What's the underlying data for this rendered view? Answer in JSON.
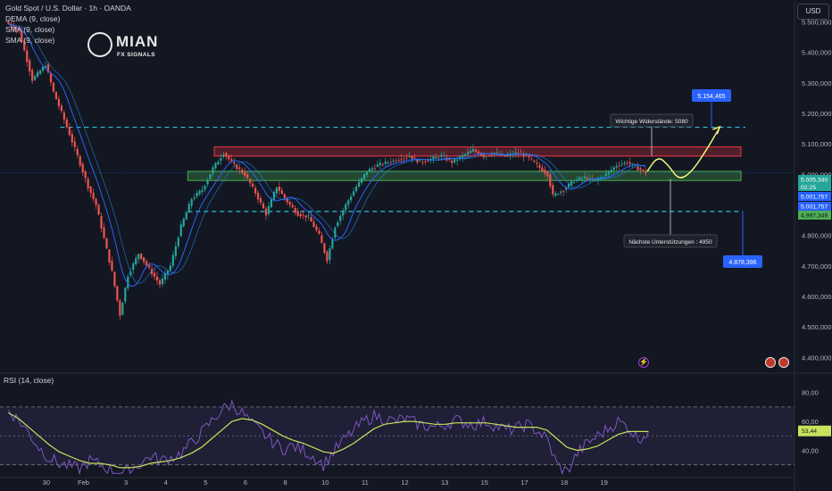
{
  "header": {
    "symbol_line": "Gold Spot / U.S. Dollar · 1h · OANDA",
    "indicator_1": "DEMA (9, close)",
    "indicator_2": "SMA (9, close)",
    "indicator_3": "SMA (9, close)"
  },
  "currency_button": "USD",
  "logo": {
    "name": "MIAN",
    "sub": "FX SIGNALS"
  },
  "rsi_title": "RSI (14, close)",
  "colors": {
    "background": "#131722",
    "up": "#26a69a",
    "down": "#ef5350",
    "resistance_zone": "#f23645",
    "support_zone": "#4caf50",
    "level_line": "#2ebdde",
    "projection": "#f5f57a",
    "rsi_line": "#7e57c2",
    "rsi_ma": "#c8e25c",
    "label_blue": "#2962ff"
  },
  "chart_data": [
    {
      "type": "candlestick",
      "title": "Gold Spot / U.S. Dollar · 1h · OANDA",
      "x_ticks": [
        "30",
        "Feb",
        "3",
        "4",
        "5",
        "6",
        "8",
        "10",
        "11",
        "12",
        "13",
        "15",
        "17",
        "18",
        "19"
      ],
      "y_ticks": [
        "5.500,000",
        "5.400,000",
        "5.300,000",
        "5.200,000",
        "5.100,000",
        "5.000,000",
        "4.900,000",
        "4.800,000",
        "4.700,000",
        "4.600,000",
        "4.500,000",
        "4.400,000"
      ],
      "ylim": [
        4360000,
        5560000
      ],
      "price_path": [
        [
          0,
          5500000
        ],
        [
          5,
          5470000
        ],
        [
          10,
          5310000
        ],
        [
          15,
          5360000
        ],
        [
          18,
          5270000
        ],
        [
          22,
          5180000
        ],
        [
          27,
          5060000
        ],
        [
          31,
          4960000
        ],
        [
          34,
          4900000
        ],
        [
          37,
          4790000
        ],
        [
          40,
          4680000
        ],
        [
          43,
          4540000
        ],
        [
          46,
          4670000
        ],
        [
          50,
          4740000
        ],
        [
          54,
          4690000
        ],
        [
          58,
          4640000
        ],
        [
          62,
          4700000
        ],
        [
          66,
          4830000
        ],
        [
          70,
          4920000
        ],
        [
          74,
          4950000
        ],
        [
          78,
          5020000
        ],
        [
          82,
          5070000
        ],
        [
          86,
          5030000
        ],
        [
          90,
          5000000
        ],
        [
          94,
          4940000
        ],
        [
          98,
          4870000
        ],
        [
          102,
          4960000
        ],
        [
          106,
          4910000
        ],
        [
          110,
          4870000
        ],
        [
          114,
          4860000
        ],
        [
          118,
          4800000
        ],
        [
          121,
          4720000
        ],
        [
          124,
          4830000
        ],
        [
          128,
          4900000
        ],
        [
          132,
          4960000
        ],
        [
          136,
          5010000
        ],
        [
          140,
          5030000
        ],
        [
          144,
          5040000
        ],
        [
          148,
          5050000
        ],
        [
          152,
          5060000
        ],
        [
          156,
          5040000
        ],
        [
          160,
          5050000
        ],
        [
          164,
          5060000
        ],
        [
          168,
          5040000
        ],
        [
          172,
          5060000
        ],
        [
          176,
          5080000
        ],
        [
          180,
          5060000
        ],
        [
          184,
          5070000
        ],
        [
          188,
          5060000
        ],
        [
          192,
          5070000
        ],
        [
          196,
          5060000
        ],
        [
          200,
          5030000
        ],
        [
          204,
          5000000
        ],
        [
          206,
          4930000
        ],
        [
          210,
          4950000
        ],
        [
          214,
          4980000
        ],
        [
          218,
          4990000
        ],
        [
          222,
          4980000
        ],
        [
          226,
          5000000
        ],
        [
          230,
          5030000
        ],
        [
          234,
          5040000
        ],
        [
          238,
          5020000
        ],
        [
          241,
          5005340
        ]
      ],
      "resistance_zone": [
        5060000,
        5090000
      ],
      "support_zone": [
        4980000,
        5010000
      ],
      "upper_level": 5154465,
      "lower_level": 4878396,
      "projection": [
        [
          241,
          5010000
        ],
        [
          245,
          5060000
        ],
        [
          249,
          5030000
        ],
        [
          253,
          4980000
        ],
        [
          258,
          5010000
        ],
        [
          264,
          5090000
        ],
        [
          268,
          5150000
        ]
      ],
      "annotations": [
        {
          "text": "Wichtige Widerstände: 5080",
          "at": "above"
        },
        {
          "text": "Nächste Unterstützungen : 4950",
          "at": "below"
        }
      ],
      "price_labels": [
        {
          "text": "5.154,465",
          "style": "blue-box"
        },
        {
          "text": "4.878,396",
          "style": "blue-box"
        },
        {
          "text": "5.005,340",
          "style": "last-price"
        },
        {
          "text": "02:25",
          "style": "countdown"
        },
        {
          "text": "5.001,757",
          "style": "blue"
        },
        {
          "text": "5.001,757",
          "style": "blue"
        },
        {
          "text": "4.997,349",
          "style": "green"
        }
      ]
    },
    {
      "type": "line",
      "title": "RSI (14, close)",
      "y_ticks": [
        "80,00",
        "60,00",
        "40,00"
      ],
      "ylim": [
        23,
        86
      ],
      "bands": [
        70,
        50,
        30
      ],
      "last_value": "53,44",
      "series": [
        {
          "values": [
            68,
            61,
            52,
            42,
            35,
            31,
            29,
            27,
            33,
            30,
            27,
            24,
            26,
            31,
            36,
            33,
            35,
            38,
            45,
            52,
            60,
            68,
            72,
            66,
            58,
            52,
            46,
            41,
            43,
            40,
            36,
            30,
            39,
            47,
            54,
            60,
            64,
            62,
            60,
            62,
            59,
            57,
            56,
            58,
            61,
            59,
            58,
            60,
            57,
            54,
            55,
            58,
            54,
            48,
            30,
            25,
            38,
            45,
            50,
            55,
            60,
            56,
            48,
            53
          ]
        },
        {
          "values": [
            66,
            62,
            56,
            50,
            44,
            39,
            36,
            33,
            31,
            31,
            30,
            28,
            28,
            29,
            31,
            32,
            33,
            35,
            38,
            42,
            48,
            54,
            60,
            62,
            61,
            58,
            54,
            50,
            47,
            45,
            42,
            39,
            38,
            41,
            45,
            50,
            55,
            58,
            59,
            60,
            60,
            59,
            58,
            58,
            59,
            59,
            59,
            59,
            58,
            57,
            56,
            56,
            56,
            54,
            48,
            42,
            40,
            41,
            43,
            47,
            51,
            53,
            53,
            53
          ]
        }
      ]
    }
  ]
}
